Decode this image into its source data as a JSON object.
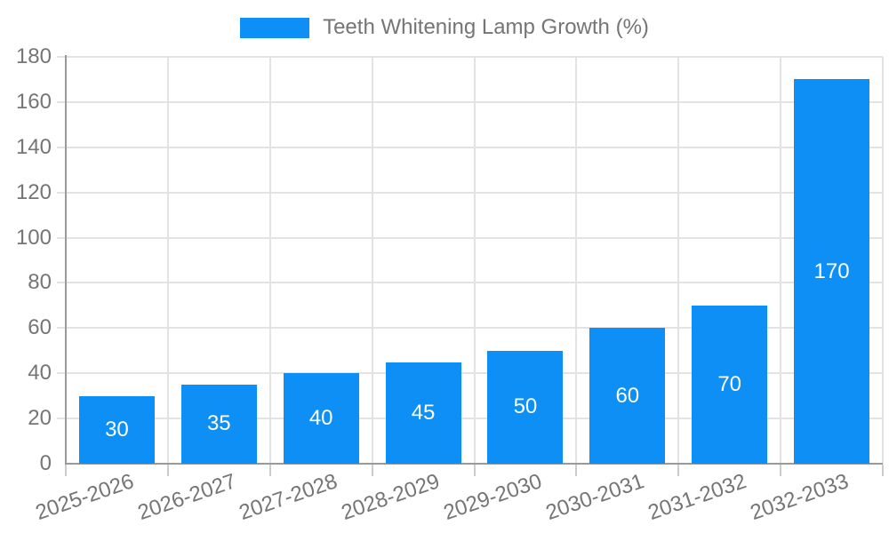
{
  "chart_data": {
    "type": "bar",
    "title": "Teeth Whitening Lamp Growth (%)",
    "categories": [
      "2025-2026",
      "2026-2027",
      "2027-2028",
      "2028-2029",
      "2029-2030",
      "2030-2031",
      "2031-2032",
      "2032-2033"
    ],
    "values": [
      30,
      35,
      40,
      45,
      50,
      60,
      70,
      170
    ],
    "bar_value_labels": [
      "30",
      "35",
      "40",
      "45",
      "50",
      "60",
      "70",
      "170"
    ],
    "xlabel": "",
    "ylabel": "",
    "ylim": [
      0,
      180
    ],
    "ytick_step": 20,
    "yticks": [
      "0",
      "20",
      "40",
      "60",
      "80",
      "100",
      "120",
      "140",
      "160",
      "180"
    ],
    "grid": true,
    "legend": {
      "label": "Teeth Whitening Lamp Growth (%)",
      "position": "top-center"
    }
  },
  "colors": {
    "bar": "#0d8ff5",
    "grid": "#e3e3e3",
    "axis": "#9a9a9a",
    "bottom_tick": "#cccccc",
    "text": "#757575",
    "bar_label": "#ffffff",
    "background": "#ffffff"
  }
}
